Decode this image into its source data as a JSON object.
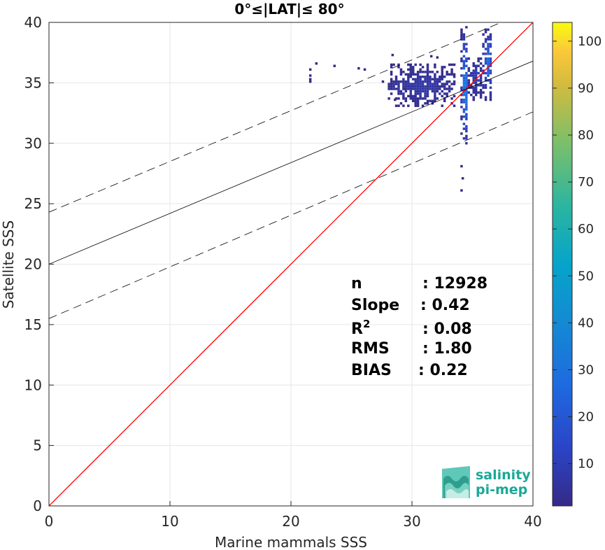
{
  "chart_data": {
    "type": "scatter",
    "title": "0°≤|LAT|≤ 80°",
    "xlabel": "Marine mammals SSS",
    "ylabel": "Satellite SSS",
    "xlim": [
      0,
      40
    ],
    "ylim": [
      0,
      40
    ],
    "xticks": [
      "0",
      "10",
      "20",
      "30",
      "40"
    ],
    "yticks": [
      "0",
      "5",
      "10",
      "15",
      "20",
      "25",
      "30",
      "35",
      "40"
    ],
    "grid": true,
    "colorbar": {
      "range": [
        1,
        104
      ],
      "ticks": [
        "10",
        "20",
        "30",
        "40",
        "50",
        "60",
        "70",
        "80",
        "90",
        "100"
      ],
      "colormap": "parula"
    },
    "reference_lines": [
      {
        "name": "1:1",
        "color": "#ff0000",
        "style": "solid",
        "x": [
          0,
          40
        ],
        "y": [
          0,
          40
        ]
      },
      {
        "name": "fit",
        "color": "#000000",
        "style": "solid",
        "x": [
          0,
          40
        ],
        "y": [
          20.0,
          36.8
        ]
      },
      {
        "name": "fit+2std",
        "color": "#000000",
        "style": "dashed",
        "x": [
          0,
          40
        ],
        "y": [
          24.3,
          41.1
        ]
      },
      {
        "name": "fit-2std",
        "color": "#000000",
        "style": "dashed",
        "x": [
          0,
          40
        ],
        "y": [
          15.5,
          32.6
        ]
      }
    ],
    "density_clusters": [
      {
        "x": [
          34.0,
          34.6
        ],
        "y": [
          29.5,
          39.6
        ],
        "peak": 40
      },
      {
        "x": [
          35.8,
          36.6
        ],
        "y": [
          33.5,
          39.5
        ],
        "peak": 30
      },
      {
        "x": [
          28.0,
          33.5
        ],
        "y": [
          33.0,
          36.5
        ],
        "peak": 8
      },
      {
        "x": [
          34.6,
          35.8
        ],
        "y": [
          33.5,
          37.0
        ],
        "peak": 12
      }
    ],
    "sparse_points": [
      [
        21.5,
        35.0
      ],
      [
        21.5,
        35.5
      ],
      [
        21.5,
        36.0
      ],
      [
        21.5,
        35.2
      ],
      [
        22.0,
        36.5
      ],
      [
        23.5,
        36.3
      ],
      [
        25.5,
        36.1
      ],
      [
        26.0,
        36.0
      ],
      [
        34.0,
        26.0
      ],
      [
        34.1,
        27.0
      ],
      [
        34.0,
        28.0
      ],
      [
        28.5,
        33.5
      ],
      [
        29.3,
        34.4
      ],
      [
        27.5,
        35.0
      ],
      [
        32.0,
        37.0
      ],
      [
        31.5,
        37.1
      ],
      [
        28.3,
        37.2
      ]
    ],
    "stats": [
      {
        "label": "n",
        "value": ": 12928"
      },
      {
        "label": "Slope",
        "value": ": 0.42"
      },
      {
        "label": "R",
        "label_sup": "2",
        "value": ": 0.08"
      },
      {
        "label": "RMS",
        "value": ": 1.80"
      },
      {
        "label": "BIAS",
        "value": ": 0.22"
      }
    ]
  },
  "logo": {
    "line1": "salinity",
    "line2": "pi-mep"
  }
}
